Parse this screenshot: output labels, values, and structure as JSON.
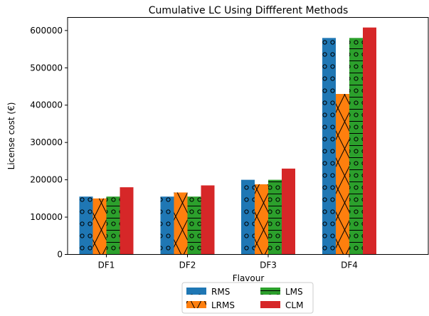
{
  "chart_data": {
    "type": "bar",
    "title": "Cumulative LC Using Diffferent Methods",
    "xlabel": "Flavour",
    "ylabel": "License cost (€)",
    "categories": [
      "DF1",
      "DF2",
      "DF3",
      "DF4"
    ],
    "ylim": [
      0,
      635000
    ],
    "yticks": [
      0,
      100000,
      200000,
      300000,
      400000,
      500000,
      600000
    ],
    "grid": false,
    "legend_position": "bottom-center",
    "series": [
      {
        "name": "RMS",
        "color": "#1f77b4",
        "hatch": "circles",
        "values": [
          155000,
          155000,
          200000,
          580000
        ]
      },
      {
        "name": "LRMS",
        "color": "#ff7f0e",
        "hatch": "x",
        "values": [
          150000,
          166000,
          188000,
          430000
        ]
      },
      {
        "name": "LMS",
        "color": "#2ca02c",
        "hatch": "circles-lines",
        "values": [
          155000,
          155000,
          200000,
          580000
        ]
      },
      {
        "name": "CLM",
        "color": "#d62728",
        "hatch": "none",
        "values": [
          180000,
          185000,
          230000,
          608000
        ]
      }
    ]
  }
}
